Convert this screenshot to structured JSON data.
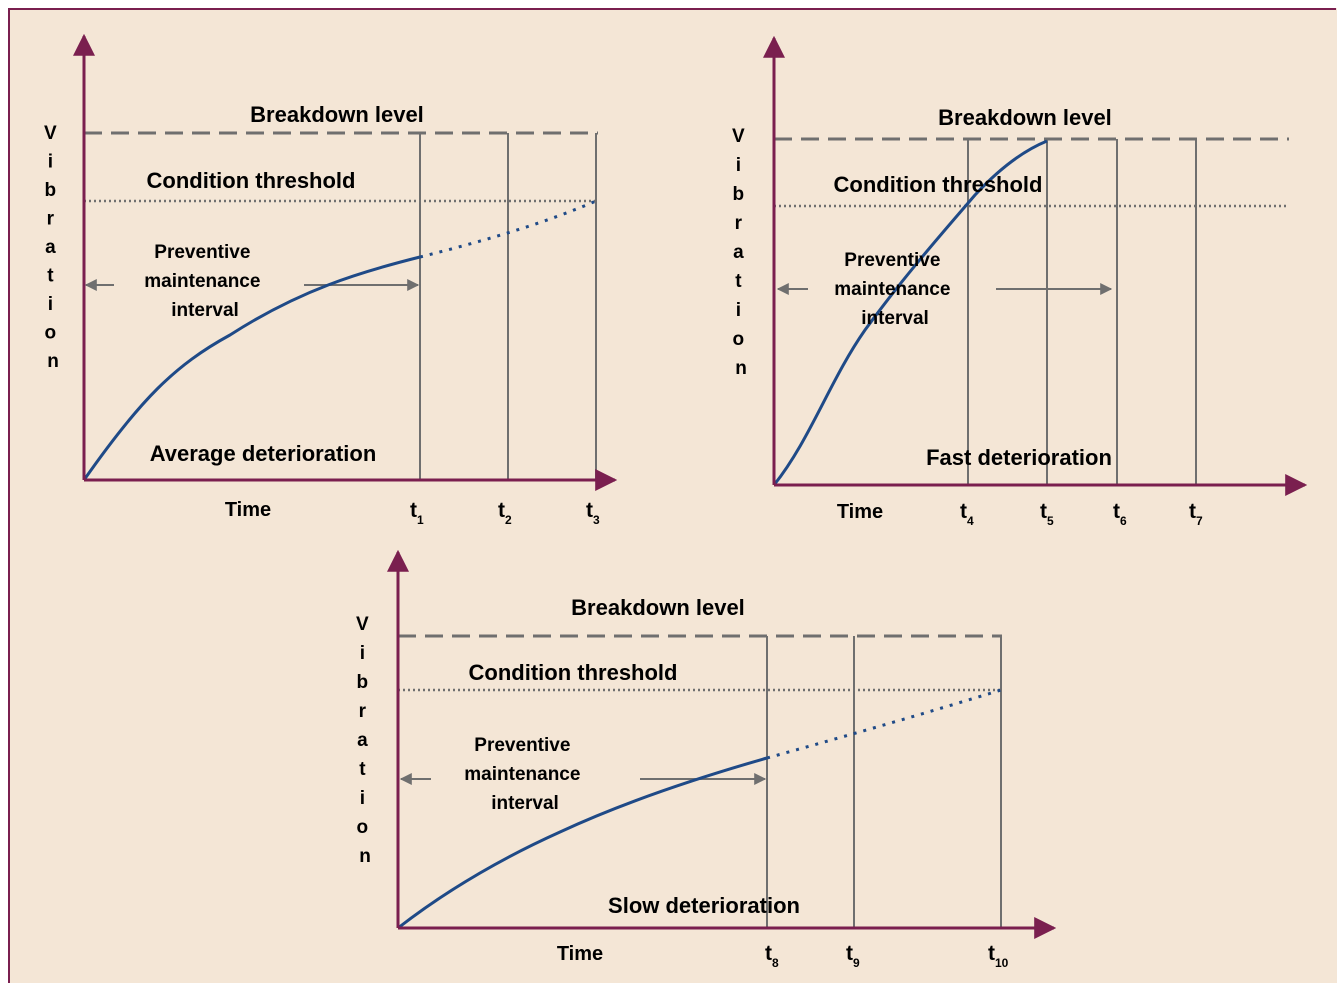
{
  "colors": {
    "background": "#f4e6d6",
    "frame": "#7a1f4f",
    "axis": "#7a1f4f",
    "curve": "#1f4a87",
    "guide": "#6f6f6f",
    "text": "#000000"
  },
  "panels": [
    {
      "id": "average",
      "axis_y_label": [
        "V",
        "i",
        "b",
        "r",
        "a",
        "t",
        "i",
        "o",
        "n"
      ],
      "axis_x_label": "Time",
      "breakdown_label": "Breakdown level",
      "threshold_label": "Condition threshold",
      "interval_label": [
        "Preventive",
        "maintenance",
        "interval"
      ],
      "deterioration_label": "Average deterioration",
      "times": [
        {
          "base": "t",
          "sub": "1"
        },
        {
          "base": "t",
          "sub": "2"
        },
        {
          "base": "t",
          "sub": "3"
        }
      ]
    },
    {
      "id": "fast",
      "axis_y_label": [
        "V",
        "i",
        "b",
        "r",
        "a",
        "t",
        "i",
        "o",
        "n"
      ],
      "axis_x_label": "Time",
      "breakdown_label": "Breakdown level",
      "threshold_label": "Condition threshold",
      "interval_label": [
        "Preventive",
        "maintenance",
        "interval"
      ],
      "deterioration_label": "Fast deterioration",
      "times": [
        {
          "base": "t",
          "sub": "4"
        },
        {
          "base": "t",
          "sub": "5"
        },
        {
          "base": "t",
          "sub": "6"
        },
        {
          "base": "t",
          "sub": "7"
        }
      ]
    },
    {
      "id": "slow",
      "axis_y_label": [
        "V",
        "i",
        "b",
        "r",
        "a",
        "t",
        "i",
        "o",
        "n"
      ],
      "axis_x_label": "Time",
      "breakdown_label": "Breakdown level",
      "threshold_label": "Condition threshold",
      "interval_label": [
        "Preventive",
        "maintenance",
        "interval"
      ],
      "deterioration_label": "Slow deterioration",
      "times": [
        {
          "base": "t",
          "sub": "8"
        },
        {
          "base": "t",
          "sub": "9"
        },
        {
          "base": "t",
          "sub": "10"
        }
      ]
    }
  ]
}
